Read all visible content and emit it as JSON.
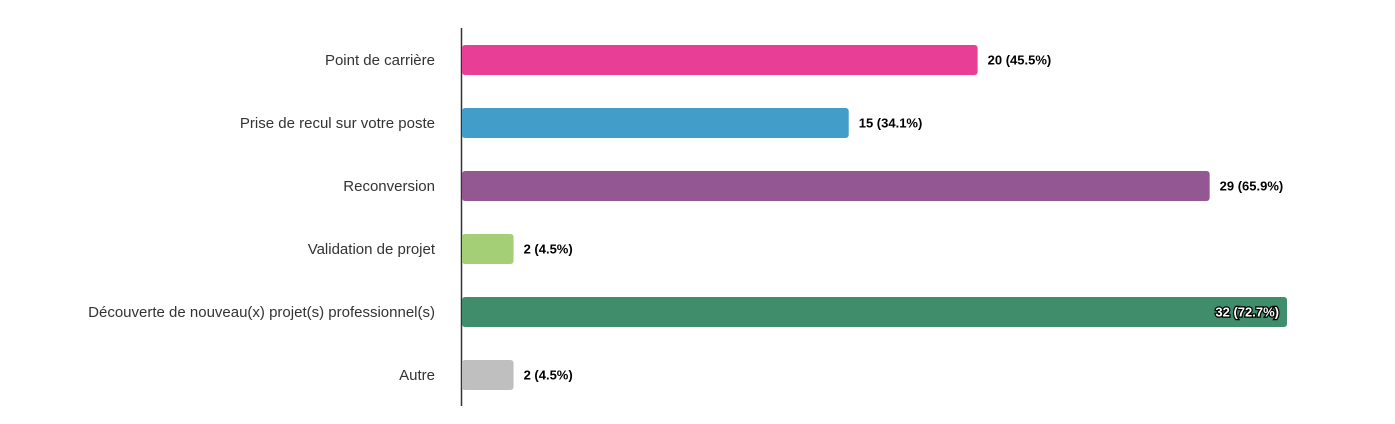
{
  "chart_data": {
    "type": "hbar",
    "categories": [
      "Point de carrière",
      "Prise de recul sur votre poste",
      "Reconversion",
      "Validation de projet",
      "Découverte de nouveau(x) projet(s) professionnel(s)",
      "Autre"
    ],
    "values": [
      20,
      15,
      29,
      2,
      32,
      2
    ],
    "value_labels": [
      "20 (45.5%)",
      "15 (34.1%)",
      "29 (65.9%)",
      "2 (4.5%)",
      "32 (72.7%)",
      "2 (4.5%)"
    ],
    "colors": [
      "#e83e96",
      "#439dc9",
      "#935792",
      "#a5cf76",
      "#3f8d6b",
      "#bfbfbf"
    ]
  }
}
